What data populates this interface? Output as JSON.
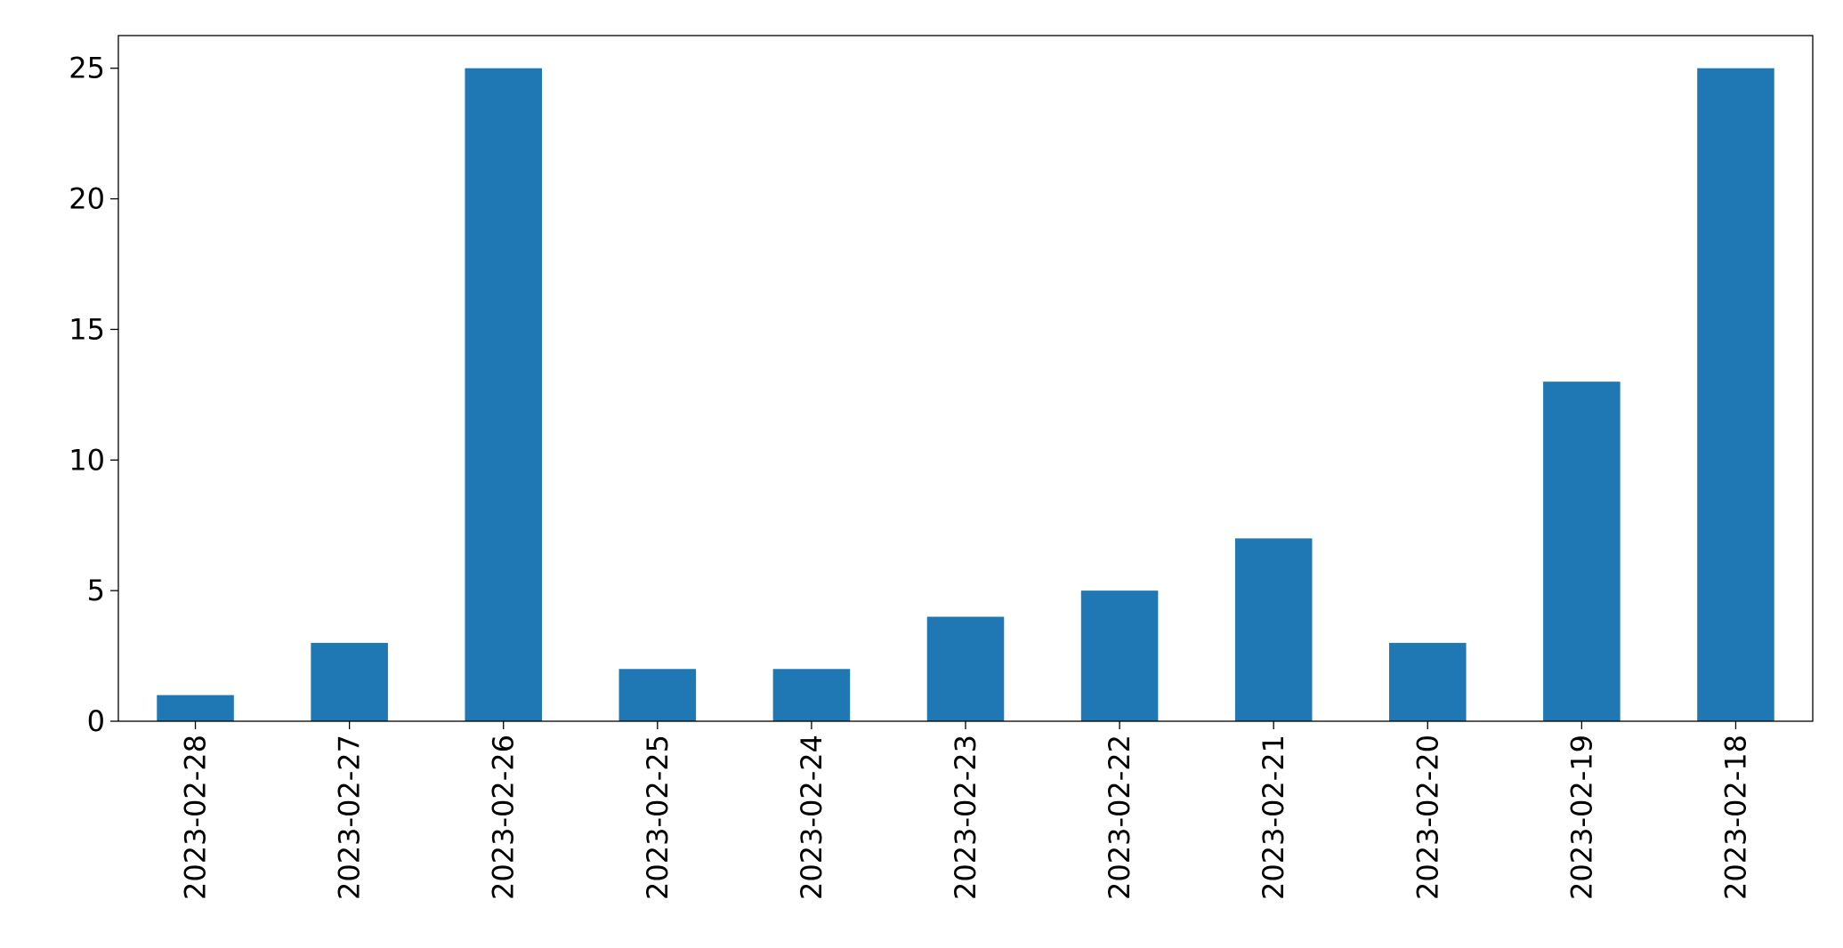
{
  "chart_data": {
    "type": "bar",
    "title": "",
    "xlabel": "",
    "ylabel": "",
    "categories": [
      "2023-02-28",
      "2023-02-27",
      "2023-02-26",
      "2023-02-25",
      "2023-02-24",
      "2023-02-23",
      "2023-02-22",
      "2023-02-21",
      "2023-02-20",
      "2023-02-19",
      "2023-02-18"
    ],
    "values": [
      1,
      3,
      25,
      2,
      2,
      4,
      5,
      7,
      3,
      13,
      25
    ],
    "ylim": [
      0,
      26.25
    ],
    "yticks": [
      0,
      5,
      10,
      15,
      20,
      25
    ],
    "legend": "none",
    "grid": false,
    "colors": {
      "bar": "#1f77b4",
      "axis": "#000000"
    }
  }
}
